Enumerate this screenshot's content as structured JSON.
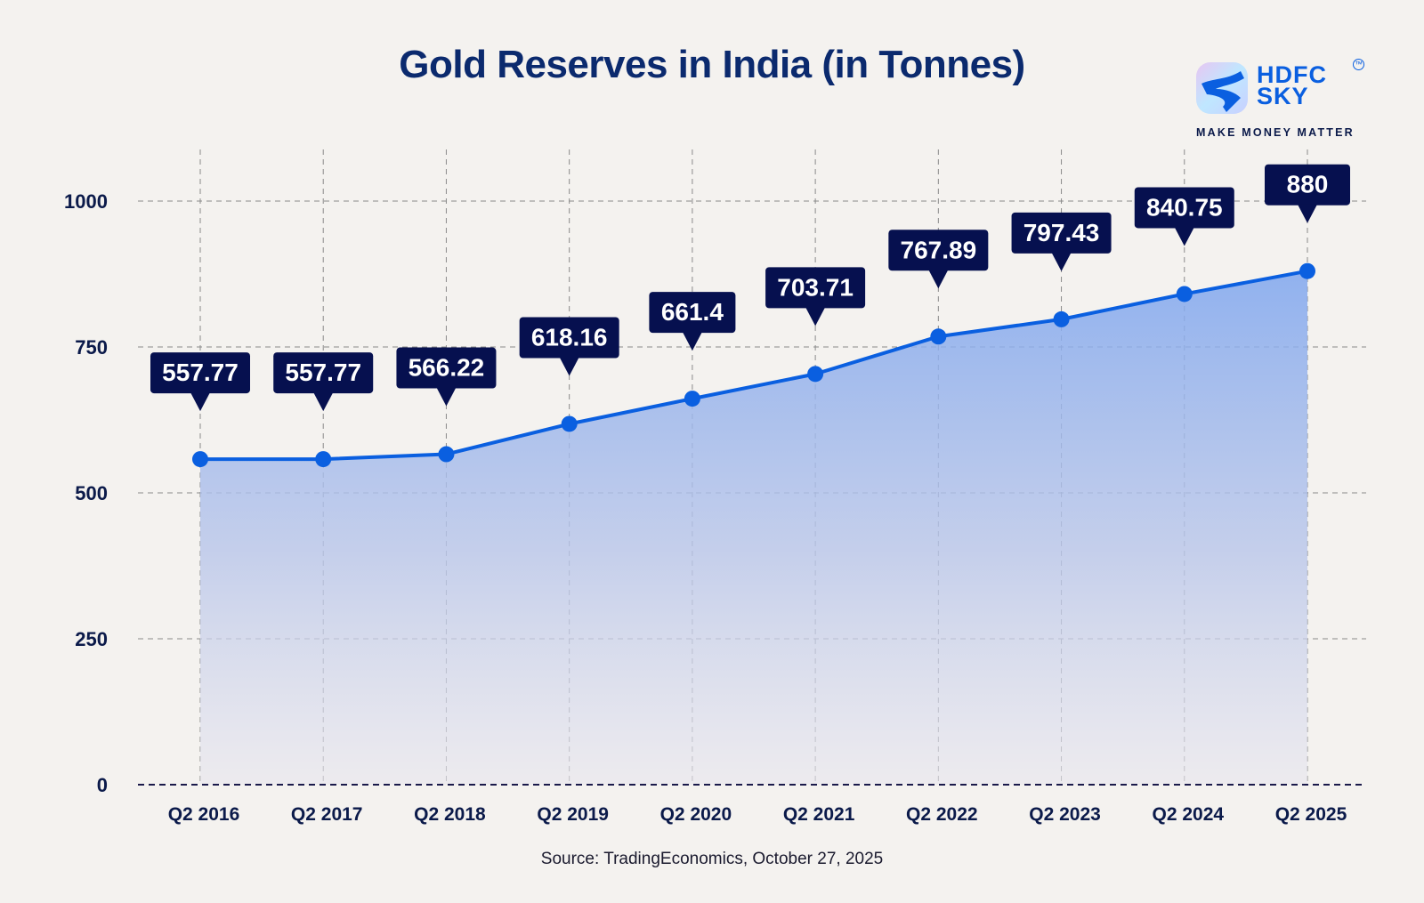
{
  "brand": {
    "name_line1": "HDFC",
    "name_line2": "SKY",
    "trademark": "TM",
    "tagline": "MAKE MONEY MATTER"
  },
  "source": "Source: TradingEconomics, October 27, 2025",
  "colors": {
    "title": "#0b2a6e",
    "line": "#0a5fe0",
    "label_bg": "#06104f",
    "axis_text": "#0b1a4a"
  },
  "chart_data": {
    "type": "area",
    "title": "Gold Reserves in India (in Tonnes)",
    "xlabel": "",
    "ylabel": "",
    "categories": [
      "Q2 2016",
      "Q2 2017",
      "Q2 2018",
      "Q2 2019",
      "Q2 2020",
      "Q2 2021",
      "Q2 2022",
      "Q2 2023",
      "Q2 2024",
      "Q2 2025"
    ],
    "series": [
      {
        "name": "Gold Reserves (Tonnes)",
        "values": [
          557.77,
          557.77,
          566.22,
          618.16,
          661.4,
          703.71,
          767.89,
          797.43,
          840.75,
          880
        ]
      }
    ],
    "data_labels": [
      "557.77",
      "557.77",
      "566.22",
      "618.16",
      "661.4",
      "703.71",
      "767.89",
      "797.43",
      "840.75",
      "880"
    ],
    "yticks": [
      0,
      250,
      500,
      750,
      1000
    ],
    "ytick_labels": [
      "0",
      "250",
      "500",
      "750",
      "1000"
    ],
    "ylim": [
      0,
      1000
    ],
    "grid": true,
    "legend": "none"
  }
}
